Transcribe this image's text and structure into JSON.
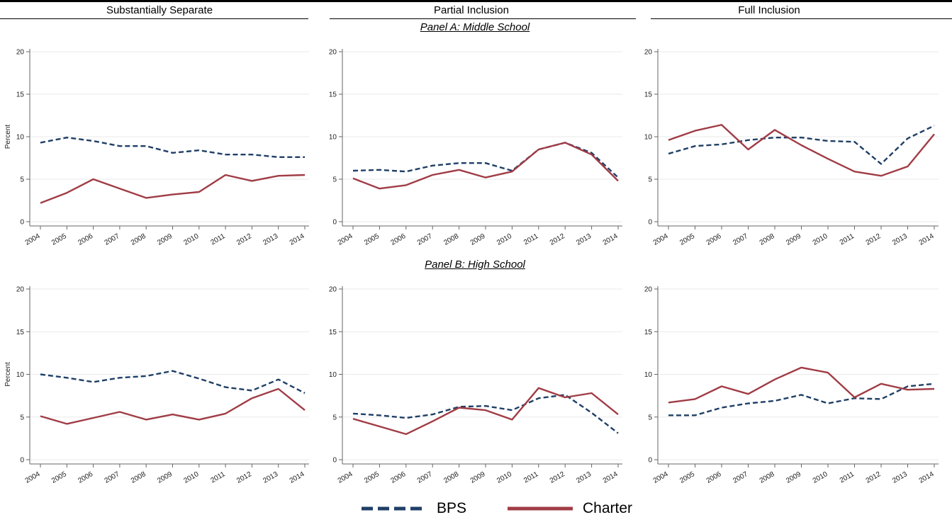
{
  "column_headers": [
    "Substantially Separate",
    "Partial Inclusion",
    "Full Inclusion"
  ],
  "panel_titles": [
    "Panel A: Middle School",
    "Panel B: High School"
  ],
  "legend": {
    "bps": "BPS",
    "charter": "Charter"
  },
  "colors": {
    "bps": "#1f3f66",
    "charter": "#a03c45",
    "grid": "#eaeaea",
    "axis": "#666666"
  },
  "chart_data": [
    {
      "type": "line",
      "panel": "Panel A: Middle School",
      "column": "Substantially Separate",
      "x": [
        2004,
        2005,
        2006,
        2007,
        2008,
        2009,
        2010,
        2011,
        2012,
        2013,
        2014
      ],
      "ylabel": "Percent",
      "ylim": [
        0,
        20
      ],
      "yticks": [
        0,
        5,
        10,
        15,
        20
      ],
      "series": [
        {
          "name": "BPS",
          "values": [
            9.3,
            9.9,
            9.5,
            8.9,
            8.9,
            8.1,
            8.4,
            7.9,
            7.9,
            7.6,
            7.6
          ]
        },
        {
          "name": "Charter",
          "values": [
            2.2,
            3.4,
            5.0,
            3.9,
            2.8,
            3.2,
            3.5,
            5.5,
            4.8,
            5.4,
            5.5
          ]
        }
      ]
    },
    {
      "type": "line",
      "panel": "Panel A: Middle School",
      "column": "Partial Inclusion",
      "x": [
        2004,
        2005,
        2006,
        2007,
        2008,
        2009,
        2010,
        2011,
        2012,
        2013,
        2014
      ],
      "ylabel": "",
      "ylim": [
        0,
        20
      ],
      "yticks": [
        0,
        5,
        10,
        15,
        20
      ],
      "series": [
        {
          "name": "BPS",
          "values": [
            6.0,
            6.1,
            5.9,
            6.6,
            6.9,
            6.9,
            6.0,
            8.5,
            9.3,
            8.1,
            5.2
          ]
        },
        {
          "name": "Charter",
          "values": [
            5.1,
            3.9,
            4.3,
            5.5,
            6.1,
            5.2,
            5.9,
            8.5,
            9.3,
            7.9,
            4.8
          ]
        }
      ]
    },
    {
      "type": "line",
      "panel": "Panel A: Middle School",
      "column": "Full Inclusion",
      "x": [
        2004,
        2005,
        2006,
        2007,
        2008,
        2009,
        2010,
        2011,
        2012,
        2013,
        2014
      ],
      "ylabel": "",
      "ylim": [
        0,
        20
      ],
      "yticks": [
        0,
        5,
        10,
        15,
        20
      ],
      "series": [
        {
          "name": "BPS",
          "values": [
            8.0,
            8.9,
            9.1,
            9.6,
            9.9,
            9.9,
            9.5,
            9.4,
            6.8,
            9.8,
            11.3
          ]
        },
        {
          "name": "Charter",
          "values": [
            9.6,
            10.7,
            11.4,
            8.5,
            10.8,
            9.0,
            7.4,
            5.9,
            5.4,
            6.5,
            10.3
          ]
        }
      ]
    },
    {
      "type": "line",
      "panel": "Panel B: High School",
      "column": "Substantially Separate",
      "x": [
        2004,
        2005,
        2006,
        2007,
        2008,
        2009,
        2010,
        2011,
        2012,
        2013,
        2014
      ],
      "ylabel": "Percent",
      "ylim": [
        0,
        20
      ],
      "yticks": [
        0,
        5,
        10,
        15,
        20
      ],
      "series": [
        {
          "name": "BPS",
          "values": [
            10.0,
            9.6,
            9.1,
            9.6,
            9.8,
            10.4,
            9.5,
            8.5,
            8.1,
            9.4,
            7.8
          ]
        },
        {
          "name": "Charter",
          "values": [
            5.1,
            4.2,
            4.9,
            5.6,
            4.7,
            5.3,
            4.7,
            5.4,
            7.2,
            8.3,
            5.8
          ]
        }
      ]
    },
    {
      "type": "line",
      "panel": "Panel B: High School",
      "column": "Partial Inclusion",
      "x": [
        2004,
        2005,
        2006,
        2007,
        2008,
        2009,
        2010,
        2011,
        2012,
        2013,
        2014
      ],
      "ylabel": "",
      "ylim": [
        0,
        20
      ],
      "yticks": [
        0,
        5,
        10,
        15,
        20
      ],
      "series": [
        {
          "name": "BPS",
          "values": [
            5.4,
            5.2,
            4.9,
            5.3,
            6.2,
            6.3,
            5.8,
            7.2,
            7.6,
            5.5,
            3.1
          ]
        },
        {
          "name": "Charter",
          "values": [
            4.8,
            3.9,
            3.0,
            4.5,
            6.1,
            5.8,
            4.7,
            8.4,
            7.3,
            7.8,
            5.3
          ]
        }
      ]
    },
    {
      "type": "line",
      "panel": "Panel B: High School",
      "column": "Full Inclusion",
      "x": [
        2004,
        2005,
        2006,
        2007,
        2008,
        2009,
        2010,
        2011,
        2012,
        2013,
        2014
      ],
      "ylabel": "",
      "ylim": [
        0,
        20
      ],
      "yticks": [
        0,
        5,
        10,
        15,
        20
      ],
      "series": [
        {
          "name": "BPS",
          "values": [
            5.2,
            5.2,
            6.1,
            6.6,
            6.9,
            7.6,
            6.6,
            7.2,
            7.1,
            8.6,
            8.9
          ]
        },
        {
          "name": "Charter",
          "values": [
            6.7,
            7.1,
            8.6,
            7.7,
            9.4,
            10.8,
            10.2,
            7.3,
            8.9,
            8.2,
            8.3
          ]
        }
      ]
    }
  ]
}
